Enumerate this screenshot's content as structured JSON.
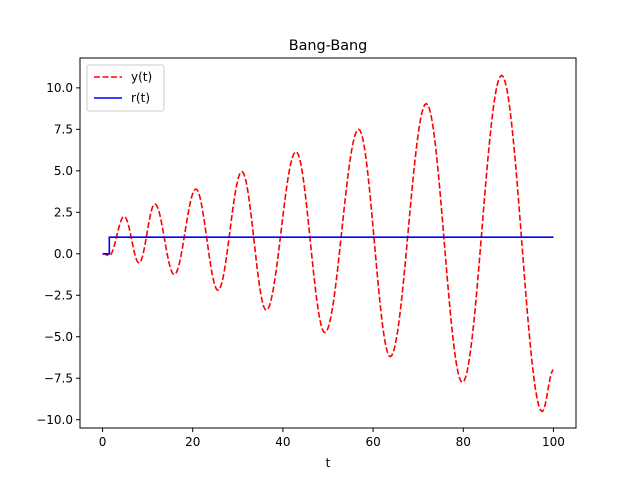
{
  "chart_data": {
    "type": "line",
    "title": "Bang-Bang",
    "xlabel": "t",
    "ylabel": "",
    "xlim": [
      -5,
      105
    ],
    "ylim": [
      -10.5,
      11.8
    ],
    "xticks": [
      0,
      20,
      40,
      60,
      80,
      100
    ],
    "xtick_labels": [
      "0",
      "20",
      "40",
      "60",
      "80",
      "100"
    ],
    "yticks": [
      -10.0,
      -7.5,
      -5.0,
      -2.5,
      0.0,
      2.5,
      5.0,
      7.5,
      10.0
    ],
    "ytick_labels": [
      "−10.0",
      "−7.5",
      "−5.0",
      "−2.5",
      "0.0",
      "2.5",
      "5.0",
      "7.5",
      "10.0"
    ],
    "grid": false,
    "legend": {
      "position": "top-left",
      "entries": [
        "y(t)",
        "r(t)"
      ]
    },
    "series": [
      {
        "name": "y(t)",
        "color": "#ff0000",
        "style": "dashed",
        "extrema_t": [
          0,
          1.5,
          4.8,
          8.1,
          11.6,
          15.9,
          20.7,
          25.6,
          30.9,
          36.3,
          42.9,
          49.3,
          56.8,
          63.8,
          71.8,
          79.8,
          88.5,
          97.5,
          100
        ],
        "extrema_y": [
          0,
          -0.1,
          2.25,
          -0.55,
          3.0,
          -1.25,
          3.9,
          -2.2,
          4.95,
          -3.4,
          6.15,
          -4.75,
          7.5,
          -6.2,
          9.05,
          -7.75,
          10.75,
          -9.5,
          -7.0
        ]
      },
      {
        "name": "r(t)",
        "color": "#0000ff",
        "style": "solid",
        "x": [
          0,
          1.5,
          1.5,
          100
        ],
        "y": [
          0,
          0,
          1,
          1
        ]
      }
    ]
  }
}
